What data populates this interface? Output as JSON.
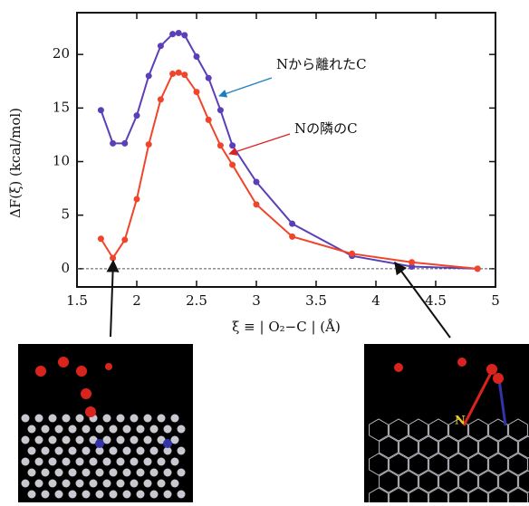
{
  "chart_data": {
    "type": "line",
    "x_label": "ξ ≡ | O₂−C | (Å)",
    "y_label": "ΔF(ξ) (kcal/mol)",
    "x": [
      1.7,
      1.8,
      1.9,
      2.0,
      2.1,
      2.2,
      2.3,
      2.35,
      2.4,
      2.5,
      2.6,
      2.7,
      2.8,
      3.0,
      3.3,
      3.8,
      4.3,
      4.85
    ],
    "series": [
      {
        "name": "Nから離れたC",
        "color": "#5b3fb8",
        "values": [
          14.8,
          11.7,
          11.7,
          14.3,
          18.0,
          20.8,
          21.9,
          22.0,
          21.8,
          19.8,
          17.8,
          14.8,
          11.5,
          8.1,
          4.2,
          1.2,
          0.2,
          0.0
        ]
      },
      {
        "name": "Nの隣のC",
        "color": "#f0452a",
        "values": [
          2.8,
          1.0,
          2.7,
          6.5,
          11.6,
          15.8,
          18.2,
          18.3,
          18.1,
          16.5,
          13.9,
          11.5,
          9.7,
          6.0,
          3.0,
          1.4,
          0.6,
          0.0
        ]
      }
    ],
    "xlim": [
      1.5,
      5.0
    ],
    "xticks": [
      1.5,
      2,
      2.5,
      3,
      3.5,
      4,
      4.5,
      5
    ],
    "ylim": [
      -1.7,
      23.9
    ],
    "yticks": [
      0,
      5,
      10,
      15,
      20
    ],
    "zero_line": true,
    "image_label": "N"
  }
}
